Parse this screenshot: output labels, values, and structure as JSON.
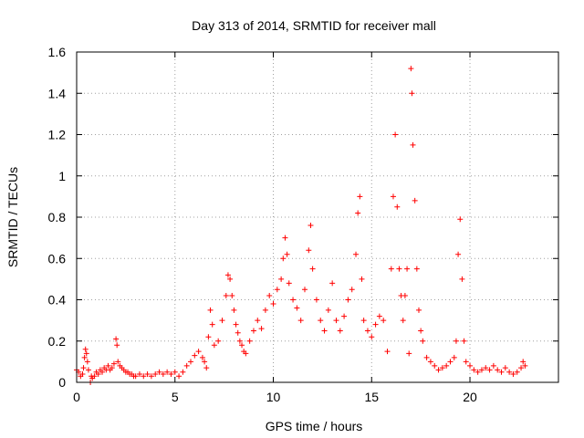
{
  "chart_data": {
    "type": "scatter",
    "title": "Day 313 of 2014, SRMTID for receiver mall",
    "xlabel": "GPS time / hours",
    "ylabel": "SRMTID / TECUs",
    "xlim": [
      0,
      24.5
    ],
    "ylim": [
      0,
      1.6
    ],
    "x_ticks": [
      0,
      5,
      10,
      15,
      20
    ],
    "x_tick_labels": [
      "0",
      "5",
      "10",
      "15",
      "20"
    ],
    "y_ticks": [
      0,
      0.2,
      0.4,
      0.6,
      0.8,
      1.0,
      1.2,
      1.4,
      1.6
    ],
    "y_tick_labels": [
      "0",
      "0.2",
      "0.4",
      "0.6",
      "0.8",
      "1",
      "1.2",
      "1.4",
      "1.6"
    ],
    "grid": true,
    "marker": "plus",
    "color": "#ff0000",
    "series": [
      {
        "name": "SRMTID",
        "points": [
          [
            0.0,
            0.06
          ],
          [
            0.1,
            0.05
          ],
          [
            0.2,
            0.03
          ],
          [
            0.3,
            0.04
          ],
          [
            0.35,
            0.07
          ],
          [
            0.4,
            0.12
          ],
          [
            0.45,
            0.16
          ],
          [
            0.5,
            0.14
          ],
          [
            0.55,
            0.1
          ],
          [
            0.6,
            0.06
          ],
          [
            0.7,
            0.0
          ],
          [
            0.75,
            0.03
          ],
          [
            0.8,
            0.02
          ],
          [
            0.9,
            0.03
          ],
          [
            1.0,
            0.05
          ],
          [
            1.1,
            0.04
          ],
          [
            1.2,
            0.06
          ],
          [
            1.3,
            0.05
          ],
          [
            1.4,
            0.07
          ],
          [
            1.5,
            0.06
          ],
          [
            1.6,
            0.08
          ],
          [
            1.7,
            0.06
          ],
          [
            1.8,
            0.07
          ],
          [
            1.9,
            0.09
          ],
          [
            2.0,
            0.21
          ],
          [
            2.05,
            0.18
          ],
          [
            2.1,
            0.1
          ],
          [
            2.2,
            0.08
          ],
          [
            2.3,
            0.07
          ],
          [
            2.4,
            0.06
          ],
          [
            2.5,
            0.05
          ],
          [
            2.6,
            0.05
          ],
          [
            2.7,
            0.04
          ],
          [
            2.8,
            0.04
          ],
          [
            2.9,
            0.03
          ],
          [
            3.0,
            0.03
          ],
          [
            3.2,
            0.04
          ],
          [
            3.4,
            0.03
          ],
          [
            3.6,
            0.04
          ],
          [
            3.8,
            0.03
          ],
          [
            4.0,
            0.04
          ],
          [
            4.2,
            0.05
          ],
          [
            4.4,
            0.04
          ],
          [
            4.6,
            0.05
          ],
          [
            4.8,
            0.04
          ],
          [
            5.0,
            0.05
          ],
          [
            5.2,
            0.03
          ],
          [
            5.4,
            0.05
          ],
          [
            5.6,
            0.08
          ],
          [
            5.8,
            0.1
          ],
          [
            6.0,
            0.13
          ],
          [
            6.2,
            0.15
          ],
          [
            6.4,
            0.12
          ],
          [
            6.5,
            0.1
          ],
          [
            6.6,
            0.07
          ],
          [
            6.7,
            0.22
          ],
          [
            6.8,
            0.35
          ],
          [
            6.9,
            0.28
          ],
          [
            7.0,
            0.18
          ],
          [
            7.2,
            0.2
          ],
          [
            7.4,
            0.3
          ],
          [
            7.6,
            0.42
          ],
          [
            7.7,
            0.52
          ],
          [
            7.8,
            0.5
          ],
          [
            7.9,
            0.42
          ],
          [
            8.0,
            0.35
          ],
          [
            8.1,
            0.28
          ],
          [
            8.2,
            0.24
          ],
          [
            8.3,
            0.2
          ],
          [
            8.4,
            0.18
          ],
          [
            8.5,
            0.15
          ],
          [
            8.6,
            0.14
          ],
          [
            8.8,
            0.2
          ],
          [
            9.0,
            0.25
          ],
          [
            9.2,
            0.3
          ],
          [
            9.4,
            0.26
          ],
          [
            9.6,
            0.35
          ],
          [
            9.8,
            0.42
          ],
          [
            10.0,
            0.38
          ],
          [
            10.2,
            0.45
          ],
          [
            10.4,
            0.5
          ],
          [
            10.5,
            0.6
          ],
          [
            10.6,
            0.7
          ],
          [
            10.7,
            0.62
          ],
          [
            10.8,
            0.48
          ],
          [
            11.0,
            0.4
          ],
          [
            11.2,
            0.36
          ],
          [
            11.4,
            0.3
          ],
          [
            11.6,
            0.45
          ],
          [
            11.8,
            0.64
          ],
          [
            11.9,
            0.76
          ],
          [
            12.0,
            0.55
          ],
          [
            12.2,
            0.4
          ],
          [
            12.4,
            0.3
          ],
          [
            12.6,
            0.25
          ],
          [
            12.8,
            0.35
          ],
          [
            13.0,
            0.48
          ],
          [
            13.2,
            0.3
          ],
          [
            13.4,
            0.25
          ],
          [
            13.6,
            0.32
          ],
          [
            13.8,
            0.4
          ],
          [
            14.0,
            0.45
          ],
          [
            14.2,
            0.62
          ],
          [
            14.3,
            0.82
          ],
          [
            14.4,
            0.9
          ],
          [
            14.5,
            0.5
          ],
          [
            14.6,
            0.3
          ],
          [
            14.8,
            0.25
          ],
          [
            15.0,
            0.22
          ],
          [
            15.2,
            0.28
          ],
          [
            15.4,
            0.32
          ],
          [
            15.6,
            0.3
          ],
          [
            15.8,
            0.15
          ],
          [
            16.0,
            0.55
          ],
          [
            16.1,
            0.9
          ],
          [
            16.2,
            1.2
          ],
          [
            16.3,
            0.85
          ],
          [
            16.4,
            0.55
          ],
          [
            16.5,
            0.42
          ],
          [
            16.6,
            0.3
          ],
          [
            16.7,
            0.42
          ],
          [
            16.8,
            0.55
          ],
          [
            16.9,
            0.14
          ],
          [
            17.0,
            1.52
          ],
          [
            17.05,
            1.4
          ],
          [
            17.1,
            1.15
          ],
          [
            17.2,
            0.88
          ],
          [
            17.3,
            0.55
          ],
          [
            17.4,
            0.35
          ],
          [
            17.5,
            0.25
          ],
          [
            17.6,
            0.2
          ],
          [
            17.8,
            0.12
          ],
          [
            18.0,
            0.1
          ],
          [
            18.2,
            0.08
          ],
          [
            18.4,
            0.06
          ],
          [
            18.6,
            0.07
          ],
          [
            18.8,
            0.08
          ],
          [
            19.0,
            0.1
          ],
          [
            19.2,
            0.12
          ],
          [
            19.3,
            0.2
          ],
          [
            19.4,
            0.62
          ],
          [
            19.5,
            0.79
          ],
          [
            19.6,
            0.5
          ],
          [
            19.7,
            0.2
          ],
          [
            19.8,
            0.1
          ],
          [
            20.0,
            0.08
          ],
          [
            20.2,
            0.06
          ],
          [
            20.4,
            0.05
          ],
          [
            20.6,
            0.06
          ],
          [
            20.8,
            0.07
          ],
          [
            21.0,
            0.06
          ],
          [
            21.2,
            0.08
          ],
          [
            21.4,
            0.06
          ],
          [
            21.6,
            0.05
          ],
          [
            21.8,
            0.07
          ],
          [
            22.0,
            0.05
          ],
          [
            22.2,
            0.04
          ],
          [
            22.4,
            0.05
          ],
          [
            22.6,
            0.07
          ],
          [
            22.7,
            0.1
          ],
          [
            22.8,
            0.08
          ]
        ]
      }
    ]
  }
}
